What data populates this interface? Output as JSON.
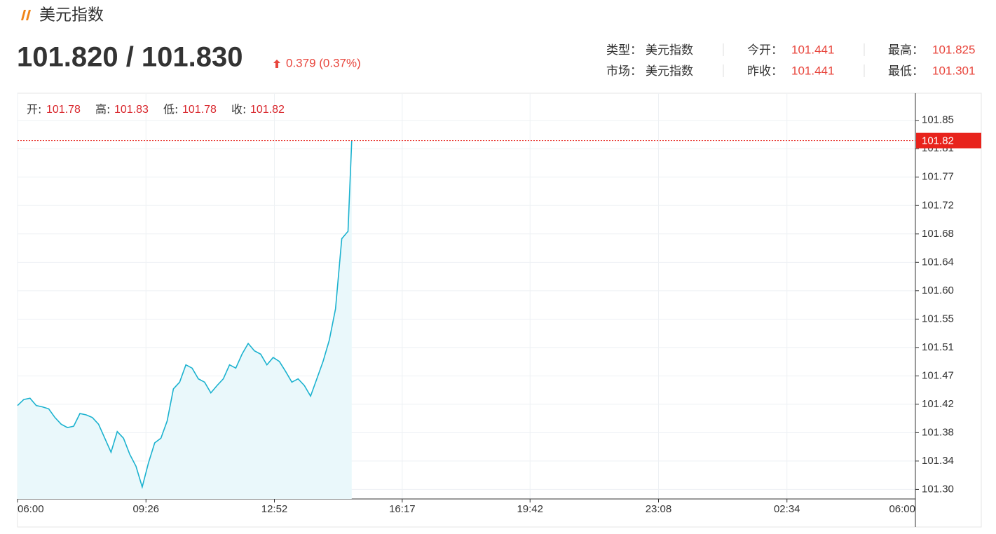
{
  "header": {
    "title": "美元指数",
    "quote": "101.820 / 101.830",
    "change": "0.379 (0.37%)"
  },
  "stats": [
    {
      "label": "类型：",
      "value": "美元指数"
    },
    {
      "label": "市场：",
      "value": "美元指数"
    },
    {
      "label": "今开：",
      "value": "101.441"
    },
    {
      "label": "昨收：",
      "value": "101.441"
    },
    {
      "label": "最高：",
      "value": "101.825"
    },
    {
      "label": "最低：",
      "value": "101.301"
    }
  ],
  "chart_data": {
    "type": "area",
    "ohlc": [
      {
        "label": "开:",
        "value": 101.78
      },
      {
        "label": "高:",
        "value": 101.83
      },
      {
        "label": "低:",
        "value": 101.78
      },
      {
        "label": "收:",
        "value": 101.82
      }
    ],
    "x": [
      "06:00",
      "06:10",
      "06:20",
      "06:30",
      "06:40",
      "06:50",
      "07:00",
      "07:10",
      "07:20",
      "07:30",
      "07:40",
      "07:50",
      "08:00",
      "08:10",
      "08:20",
      "08:30",
      "08:40",
      "08:50",
      "09:00",
      "09:10",
      "09:20",
      "09:30",
      "09:40",
      "09:50",
      "10:00",
      "10:10",
      "10:20",
      "10:30",
      "10:40",
      "10:50",
      "11:00",
      "11:10",
      "11:20",
      "11:30",
      "11:40",
      "11:50",
      "12:00",
      "12:10",
      "12:20",
      "12:30",
      "12:40",
      "12:50",
      "13:00",
      "13:10",
      "13:20",
      "13:30",
      "13:40",
      "13:50",
      "14:00",
      "14:10",
      "14:20",
      "14:30",
      "14:40",
      "14:50",
      "14:56"
    ],
    "series": [
      {
        "color": "#1bb2cf",
        "fill": "#eaf8fb",
        "values": [
          101.423,
          101.432,
          101.434,
          101.423,
          101.421,
          101.418,
          101.405,
          101.395,
          101.39,
          101.392,
          101.411,
          101.409,
          101.405,
          101.395,
          101.374,
          101.353,
          101.384,
          101.374,
          101.35,
          101.332,
          101.301,
          101.337,
          101.367,
          101.374,
          101.4,
          101.448,
          101.458,
          101.484,
          101.479,
          101.463,
          101.458,
          101.442,
          101.453,
          101.463,
          101.484,
          101.479,
          101.5,
          101.516,
          101.505,
          101.5,
          101.484,
          101.495,
          101.489,
          101.474,
          101.458,
          101.463,
          101.453,
          101.437,
          101.463,
          101.489,
          101.521,
          101.568,
          101.673,
          101.684,
          101.82
        ]
      }
    ],
    "xlim": [
      "06:00",
      "06:00"
    ],
    "xticks": [
      "06:00",
      "09:26",
      "12:52",
      "16:17",
      "19:42",
      "23:08",
      "02:34",
      "06:00"
    ],
    "ylim": [
      101.283,
      101.891
    ],
    "yticks": [
      {
        "value": 101.29728,
        "label": "101.30"
      },
      {
        "value": 101.33982,
        "label": "101.34"
      },
      {
        "value": 101.38236,
        "label": "101.38"
      },
      {
        "value": 101.4249,
        "label": "101.42"
      },
      {
        "value": 101.46744,
        "label": "101.47"
      },
      {
        "value": 101.50998,
        "label": "101.51"
      },
      {
        "value": 101.55252,
        "label": "101.55"
      },
      {
        "value": 101.59506,
        "label": "101.60"
      },
      {
        "value": 101.6376,
        "label": "101.64"
      },
      {
        "value": 101.68014,
        "label": "101.68"
      },
      {
        "value": 101.72268,
        "label": "101.72"
      },
      {
        "value": 101.76522,
        "label": "101.77"
      },
      {
        "value": 101.80776,
        "label": "101.81"
      },
      {
        "value": 101.8503,
        "label": "101.85"
      }
    ],
    "last_price": 101.82,
    "last_color": "#e8231c",
    "grid": true
  }
}
